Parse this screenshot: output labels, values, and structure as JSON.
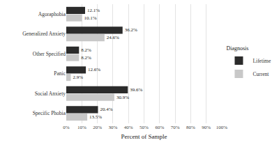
{
  "chart_data": {
    "type": "bar",
    "orientation": "horizontal",
    "x_label": "Percent of Sample",
    "legend_title": "Diagnosis",
    "legend": "right",
    "categories": [
      "Agoraphobia",
      "Generalized Anxiety",
      "Other Specified",
      "Panic",
      "Social Anxiety",
      "Specific Phobia"
    ],
    "series": [
      {
        "name": "Lifetime",
        "color": "#2b2b2b",
        "values": [
          12.1,
          36.2,
          8.2,
          12.6,
          39.6,
          20.4
        ],
        "value_labels": [
          "12.1%",
          "36.2%",
          "8.2%",
          "12.6%",
          "39.6%",
          "20.4%"
        ]
      },
      {
        "name": "Current",
        "color": "#c8c8c8",
        "values": [
          10.1,
          24.6,
          8.2,
          2.9,
          30.9,
          13.5
        ],
        "value_labels": [
          "10.1%",
          "24.6%",
          "8.2%",
          "2.9%",
          "30.9%",
          "13.5%"
        ]
      }
    ],
    "xlim": [
      0,
      100
    ],
    "xticks": [
      {
        "value": 0,
        "label": "0%"
      },
      {
        "value": 10,
        "label": "10%"
      },
      {
        "value": 20,
        "label": "20%"
      },
      {
        "value": 30,
        "label": "30%"
      },
      {
        "value": 40,
        "label": "40%"
      },
      {
        "value": 50,
        "label": "50%"
      },
      {
        "value": 60,
        "label": "60%"
      },
      {
        "value": 70,
        "label": "70%"
      },
      {
        "value": 80,
        "label": "80%"
      },
      {
        "value": 90,
        "label": "90%"
      },
      {
        "value": 100,
        "label": "100%"
      }
    ],
    "grid": true,
    "data_labels": true
  }
}
